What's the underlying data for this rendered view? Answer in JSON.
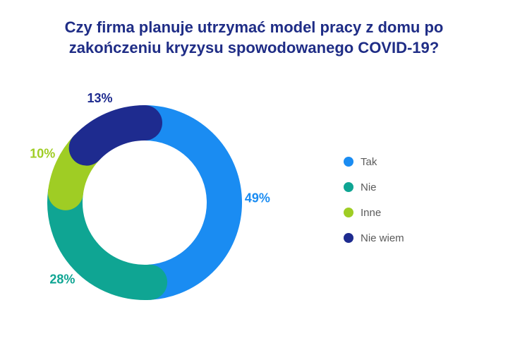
{
  "title_lines": [
    "Czy firma planuje utrzymać model pracy z domu po",
    "zakończeniu kryzysu spowodowanego COVID-19?"
  ],
  "chart_data": {
    "type": "pie",
    "title": "Czy firma planuje utrzymać model pracy z domu po zakończeniu kryzysu spowodowanego COVID-19?",
    "categories": [
      "Tak",
      "Nie",
      "Inne",
      "Nie wiem"
    ],
    "values": [
      49,
      28,
      10,
      13
    ],
    "labels": [
      "49%",
      "28%",
      "10%",
      "13%"
    ],
    "colors": [
      "#1a8cf2",
      "#0fa593",
      "#9fcd24",
      "#1e2b8f"
    ],
    "legend_position": "right"
  }
}
